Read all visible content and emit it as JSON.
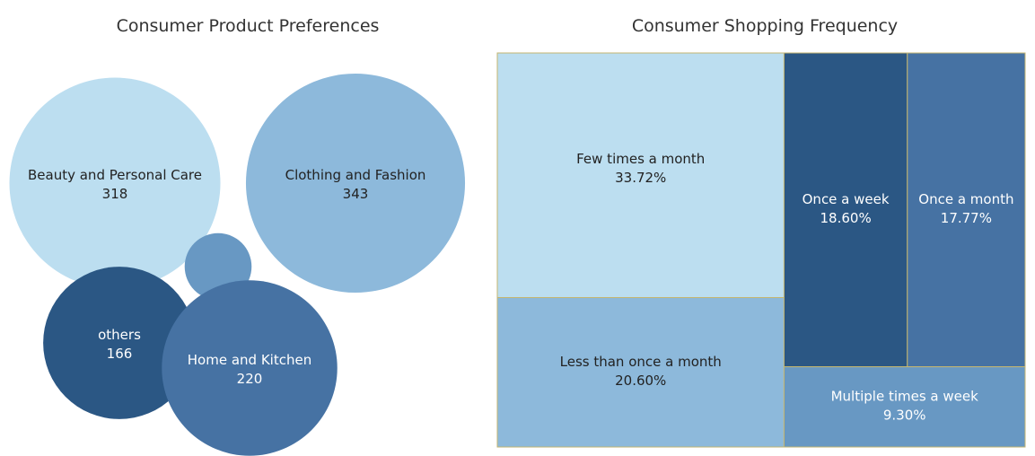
{
  "chart_data": [
    {
      "type": "bubble",
      "title": "Consumer Product Preferences",
      "items": [
        {
          "label": "Beauty and Personal Care",
          "value": 318,
          "value_text": "318",
          "color": "#bcdef0",
          "text_color": "#222222"
        },
        {
          "label": "Clothing and Fashion",
          "value": 343,
          "value_text": "343",
          "color": "#8db9db",
          "text_color": "#222222"
        },
        {
          "label": "",
          "value": 32,
          "value_text": "",
          "color": "#6898c3",
          "text_color": "#ffffff"
        },
        {
          "label": "others",
          "value": 166,
          "value_text": "166",
          "color": "#2b5784",
          "text_color": "#ffffff"
        },
        {
          "label": "Home and Kitchen",
          "value": 220,
          "value_text": "220",
          "color": "#4672a3",
          "text_color": "#ffffff"
        }
      ]
    },
    {
      "type": "treemap",
      "title": "Consumer Shopping Frequency",
      "border_color": "#c4b670",
      "items": [
        {
          "label": "Few times a month",
          "value": 33.72,
          "value_text": "33.72%",
          "color": "#bcdef0",
          "text_color": "#222222"
        },
        {
          "label": "Less than once a month",
          "value": 20.6,
          "value_text": "20.60%",
          "color": "#8db9db",
          "text_color": "#222222"
        },
        {
          "label": "Once a week",
          "value": 18.6,
          "value_text": "18.60%",
          "color": "#2b5784",
          "text_color": "#ffffff"
        },
        {
          "label": "Once a month",
          "value": 17.77,
          "value_text": "17.77%",
          "color": "#4672a3",
          "text_color": "#ffffff"
        },
        {
          "label": "Multiple times a week",
          "value": 9.3,
          "value_text": "9.30%",
          "color": "#6898c3",
          "text_color": "#ffffff"
        }
      ]
    }
  ]
}
